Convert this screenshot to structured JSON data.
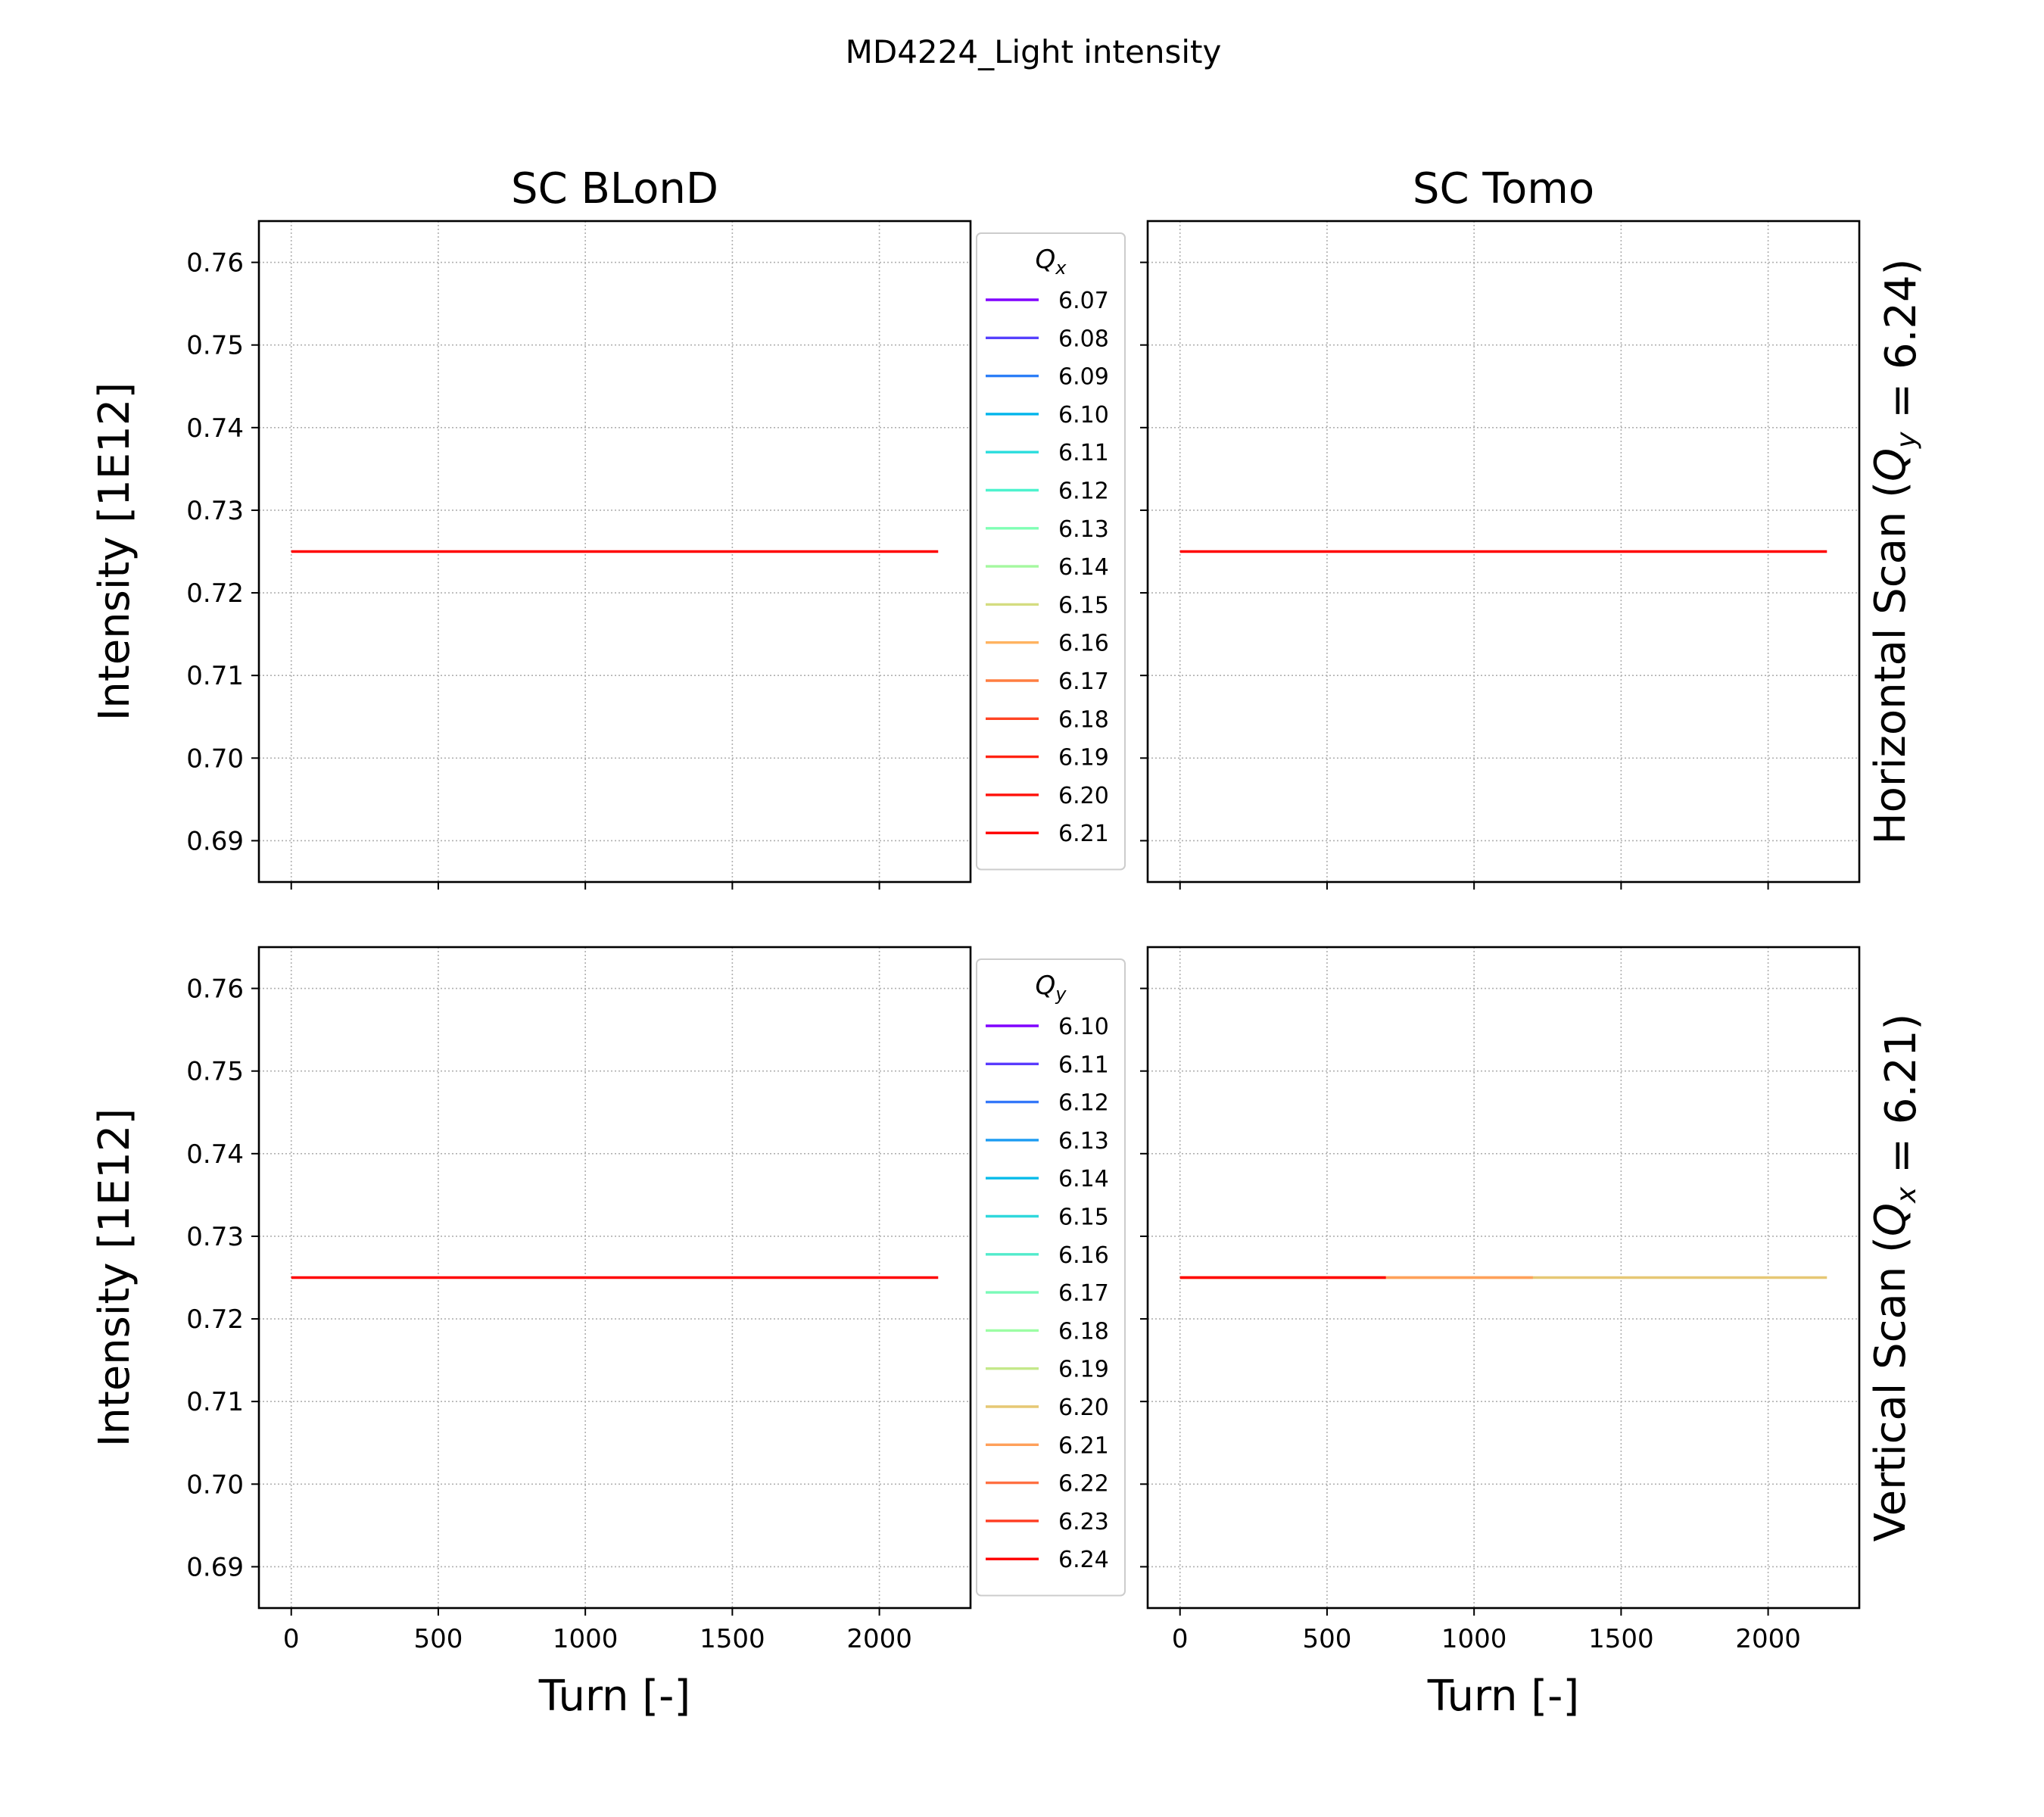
{
  "figure": {
    "title": "MD4224_Light intensity",
    "col_titles": [
      "SC BLonD",
      "SC Tomo"
    ],
    "row_labels": [
      "Horizontal Scan (Q_y = 6.24)",
      "Vertical Scan (Q_x = 6.21)"
    ],
    "ylabel": "Intensity [1E12]",
    "xlabel": "Turn [-]"
  },
  "chart_data": [
    {
      "type": "line",
      "panel": "top-left",
      "title": "SC BLonD",
      "ylabel": "Intensity [1E12]",
      "xlabel": "",
      "xlim": [
        -110,
        2310
      ],
      "ylim": [
        0.685,
        0.765
      ],
      "xticks": [
        0,
        500,
        1000,
        1500,
        2000
      ],
      "yticks": [
        0.69,
        0.7,
        0.71,
        0.72,
        0.73,
        0.74,
        0.75,
        0.76
      ],
      "show_xtick_labels": false,
      "grid": true,
      "legend": {
        "title": "Q_x",
        "placement": "outside-right",
        "entries": [
          {
            "label": "6.07",
            "color": "#8000ff"
          },
          {
            "label": "6.08",
            "color": "#5641fd"
          },
          {
            "label": "6.09",
            "color": "#2c7ef7"
          },
          {
            "label": "6.10",
            "color": "#00b5eb"
          },
          {
            "label": "6.11",
            "color": "#2adddd"
          },
          {
            "label": "6.12",
            "color": "#4df3ce"
          },
          {
            "label": "6.13",
            "color": "#80ffb4"
          },
          {
            "label": "6.14",
            "color": "#a4f89f"
          },
          {
            "label": "6.15",
            "color": "#d4dd80"
          },
          {
            "label": "6.16",
            "color": "#ffb360"
          },
          {
            "label": "6.17",
            "color": "#ff7e41"
          },
          {
            "label": "6.18",
            "color": "#ff4424"
          },
          {
            "label": "6.19",
            "color": "#ff2212"
          },
          {
            "label": "6.20",
            "color": "#ff1009"
          },
          {
            "label": "6.21",
            "color": "#ff0000"
          }
        ]
      },
      "series": [
        {
          "color": "#ff0000",
          "x": [
            0,
            2200
          ],
          "y": [
            0.725,
            0.725
          ]
        }
      ]
    },
    {
      "type": "line",
      "panel": "top-right",
      "title": "SC Tomo",
      "ylabel": "",
      "xlabel": "",
      "side_label": "Horizontal Scan (Q_y = 6.24)",
      "xlim": [
        -110,
        2310
      ],
      "ylim": [
        0.685,
        0.765
      ],
      "xticks": [
        0,
        500,
        1000,
        1500,
        2000
      ],
      "yticks": [
        0.69,
        0.7,
        0.71,
        0.72,
        0.73,
        0.74,
        0.75,
        0.76
      ],
      "show_xtick_labels": false,
      "show_ytick_labels": false,
      "grid": true,
      "series": [
        {
          "color": "#ff0000",
          "x": [
            0,
            2200
          ],
          "y": [
            0.725,
            0.725
          ]
        }
      ]
    },
    {
      "type": "line",
      "panel": "bottom-left",
      "title": "",
      "ylabel": "Intensity [1E12]",
      "xlabel": "Turn [-]",
      "xlim": [
        -110,
        2310
      ],
      "ylim": [
        0.685,
        0.765
      ],
      "xticks": [
        0,
        500,
        1000,
        1500,
        2000
      ],
      "yticks": [
        0.69,
        0.7,
        0.71,
        0.72,
        0.73,
        0.74,
        0.75,
        0.76
      ],
      "show_xtick_labels": true,
      "grid": true,
      "legend": {
        "title": "Q_y",
        "placement": "outside-right",
        "entries": [
          {
            "label": "6.10",
            "color": "#8000ff"
          },
          {
            "label": "6.11",
            "color": "#5a3bfd"
          },
          {
            "label": "6.12",
            "color": "#3478f9"
          },
          {
            "label": "6.13",
            "color": "#1c9cf2"
          },
          {
            "label": "6.14",
            "color": "#07bbea"
          },
          {
            "label": "6.15",
            "color": "#30d8dc"
          },
          {
            "label": "6.16",
            "color": "#52ebcc"
          },
          {
            "label": "6.17",
            "color": "#7afab8"
          },
          {
            "label": "6.18",
            "color": "#9cfea4"
          },
          {
            "label": "6.19",
            "color": "#c4e98a"
          },
          {
            "label": "6.20",
            "color": "#e6c874"
          },
          {
            "label": "6.21",
            "color": "#ffa05a"
          },
          {
            "label": "6.22",
            "color": "#ff7042"
          },
          {
            "label": "6.23",
            "color": "#ff3c20"
          },
          {
            "label": "6.24",
            "color": "#ff0000"
          }
        ]
      },
      "series": [
        {
          "color": "#ff0000",
          "x": [
            0,
            2200
          ],
          "y": [
            0.725,
            0.725
          ]
        }
      ]
    },
    {
      "type": "line",
      "panel": "bottom-right",
      "title": "",
      "ylabel": "",
      "xlabel": "Turn [-]",
      "side_label": "Vertical Scan (Q_x = 6.21)",
      "xlim": [
        -110,
        2310
      ],
      "ylim": [
        0.685,
        0.765
      ],
      "xticks": [
        0,
        500,
        1000,
        1500,
        2000
      ],
      "yticks": [
        0.69,
        0.7,
        0.71,
        0.72,
        0.73,
        0.74,
        0.75,
        0.76
      ],
      "show_xtick_labels": true,
      "show_ytick_labels": false,
      "grid": true,
      "series": [
        {
          "color": "#e6c874",
          "x": [
            0,
            2200
          ],
          "y": [
            0.725,
            0.725
          ]
        },
        {
          "color": "#ffa05a",
          "x": [
            0,
            1200
          ],
          "y": [
            0.725,
            0.725
          ]
        },
        {
          "color": "#ff0000",
          "x": [
            0,
            700
          ],
          "y": [
            0.725,
            0.725
          ]
        }
      ]
    }
  ]
}
